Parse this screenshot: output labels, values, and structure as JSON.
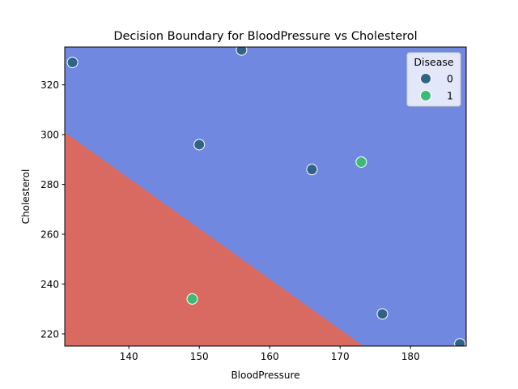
{
  "chart_data": {
    "type": "scatter",
    "title": "Decision Boundary for BloodPressure vs Cholesterol",
    "xlabel": "BloodPressure",
    "ylabel": "Cholesterol",
    "xlim": [
      130.9,
      187.9
    ],
    "ylim": [
      215.1,
      335.2
    ],
    "xticks": [
      140,
      150,
      160,
      170,
      180
    ],
    "yticks": [
      220,
      240,
      260,
      280,
      300,
      320
    ],
    "grid": false,
    "legend": {
      "title": "Disease",
      "placement": "top-right",
      "entries": [
        {
          "label": "0",
          "color": "#2f6387"
        },
        {
          "label": "1",
          "color": "#3cbb75"
        }
      ]
    },
    "regions": [
      {
        "class": "0",
        "color": "#7088e0"
      },
      {
        "class": "1",
        "color": "#d96a62"
      }
    ],
    "decision_boundary": [
      {
        "x": 130.9,
        "y": 301
      },
      {
        "x": 173.3,
        "y": 215.1
      }
    ],
    "points": [
      {
        "x": 132,
        "y": 329,
        "class": "0"
      },
      {
        "x": 156,
        "y": 334,
        "class": "0"
      },
      {
        "x": 150,
        "y": 296,
        "class": "0"
      },
      {
        "x": 166,
        "y": 286,
        "class": "0"
      },
      {
        "x": 173,
        "y": 289,
        "class": "1"
      },
      {
        "x": 149,
        "y": 234,
        "class": "1"
      },
      {
        "x": 176,
        "y": 228,
        "class": "0"
      },
      {
        "x": 187,
        "y": 216,
        "class": "0"
      }
    ]
  }
}
